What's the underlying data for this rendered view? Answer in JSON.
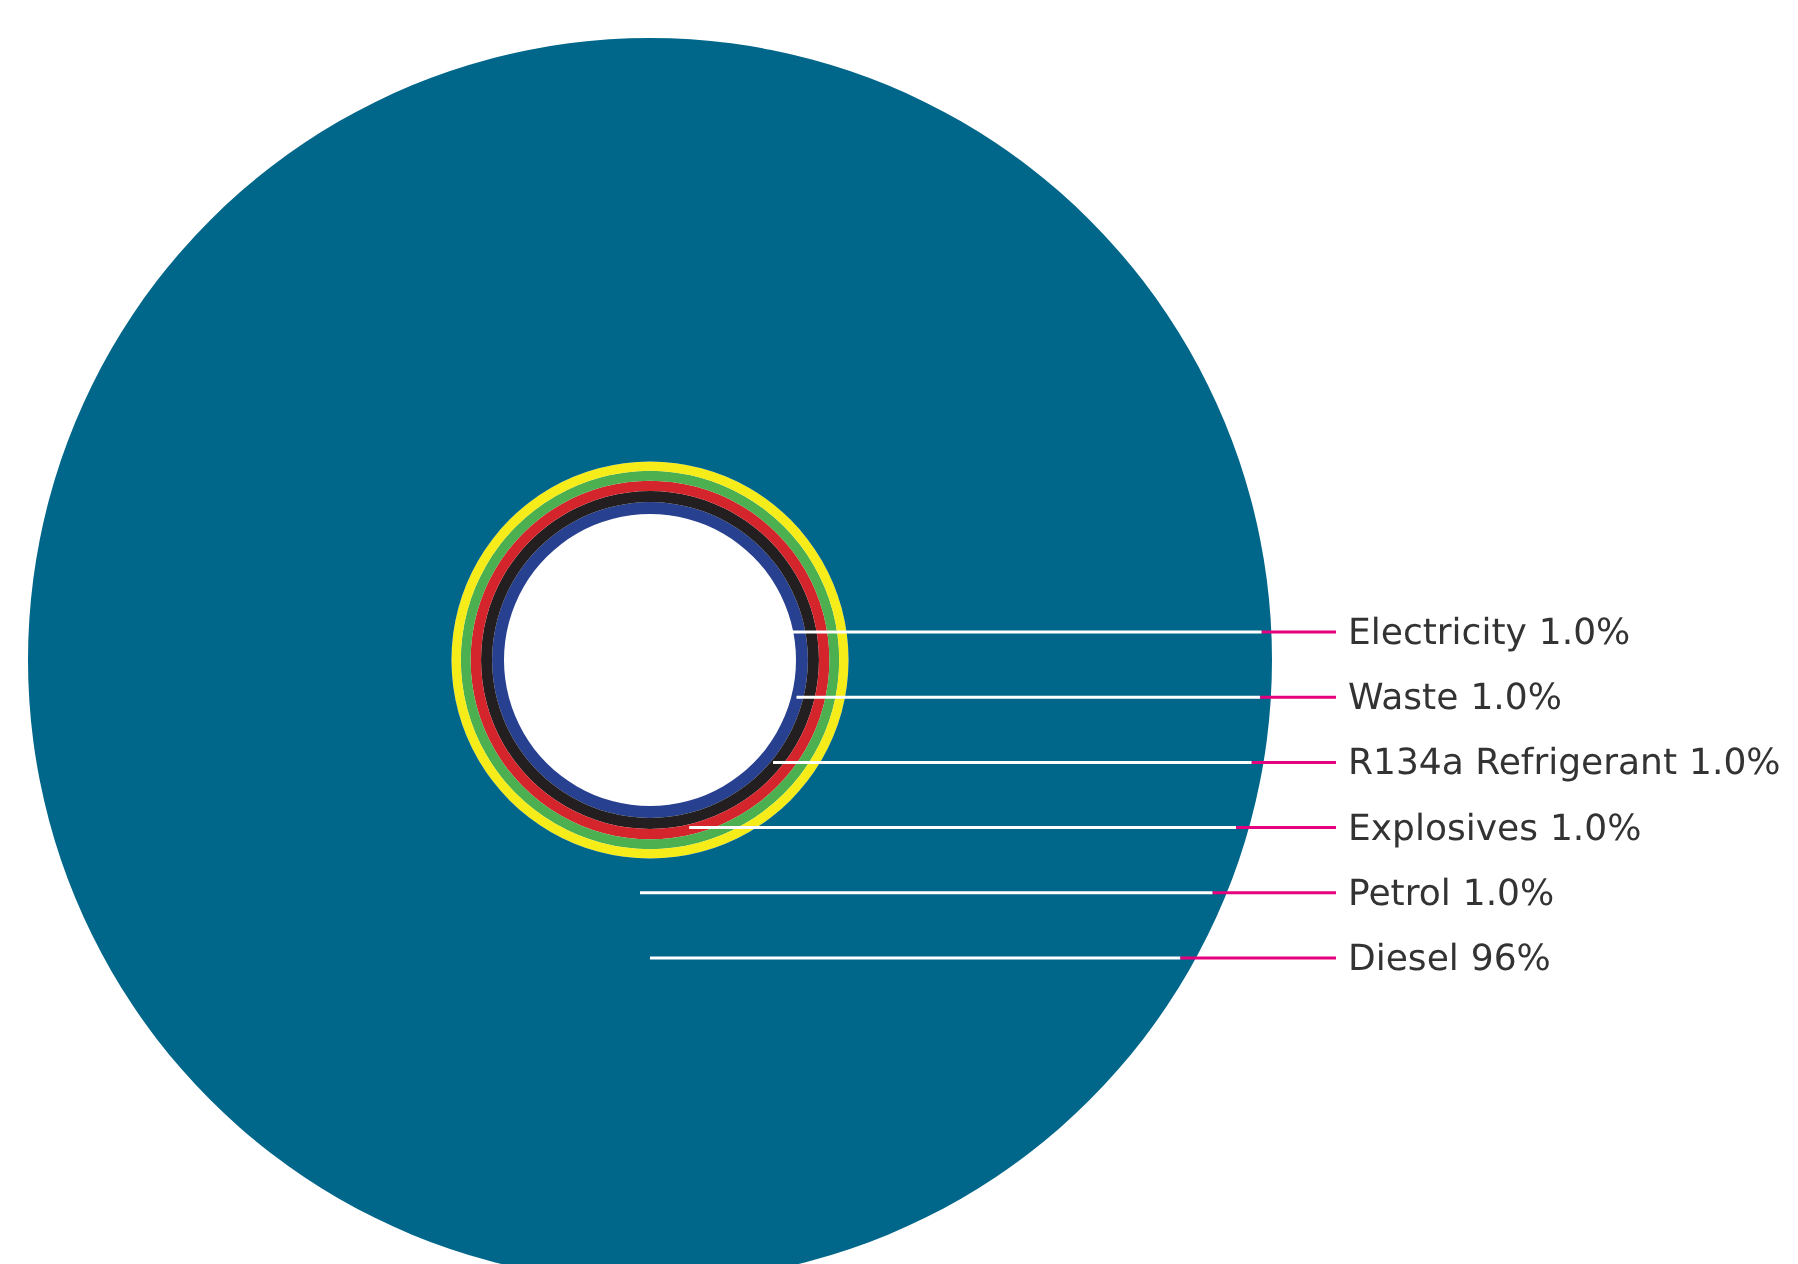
{
  "chart_data": {
    "type": "other",
    "categories": [
      "Electricity",
      "Waste",
      "R134a Refrigerant",
      "Explosives",
      "Petrol",
      "Diesel"
    ],
    "values": [
      1.0,
      1.0,
      1.0,
      1.0,
      1.0,
      96
    ],
    "value_labels": [
      "1.0%",
      "1.0%",
      "1.0%",
      "1.0%",
      "1.0%",
      "96%"
    ],
    "colors": [
      "#27408f",
      "#231f20",
      "#d5252c",
      "#4caf50",
      "#f5ec1a",
      "#00668a"
    ]
  }
}
